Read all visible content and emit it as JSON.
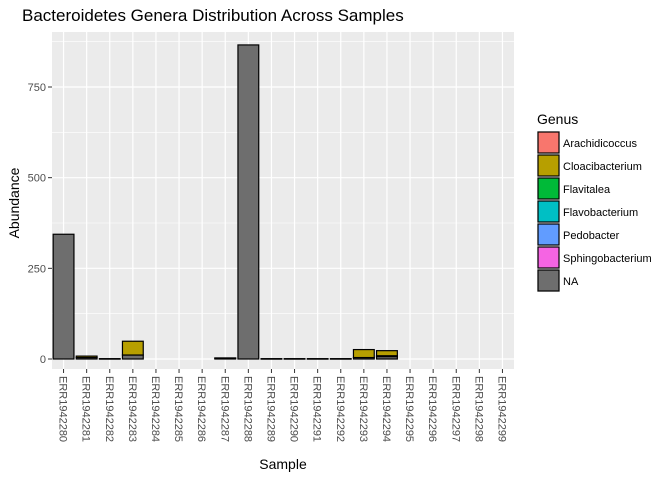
{
  "chart_data": {
    "type": "bar",
    "stacked": true,
    "title": "Bacteroidetes Genera Distribution Across Samples",
    "xlabel": "Sample",
    "ylabel": "Abundance",
    "ylim": [
      0,
      900
    ],
    "yticks": [
      0,
      250,
      500,
      750
    ],
    "ytick_labels": [
      "0",
      "250",
      "500",
      "750"
    ],
    "grid": true,
    "legend_position": "right",
    "legend_title": "Genus",
    "categories": [
      "ERR1942280",
      "ERR1942281",
      "ERR1942282",
      "ERR1942283",
      "ERR1942284",
      "ERR1942285",
      "ERR1942286",
      "ERR1942287",
      "ERR1942288",
      "ERR1942289",
      "ERR1942290",
      "ERR1942291",
      "ERR1942292",
      "ERR1942293",
      "ERR1942294",
      "ERR1942295",
      "ERR1942296",
      "ERR1942297",
      "ERR1942298",
      "ERR1942299"
    ],
    "series": [
      {
        "name": "Arachidicoccus",
        "color": "#F8766D",
        "values": [
          0,
          0,
          0,
          0,
          0,
          0,
          0,
          0,
          0,
          0,
          0,
          0,
          0,
          0,
          0,
          0,
          0,
          0,
          0,
          0
        ]
      },
      {
        "name": "Cloacibacterium",
        "color": "#B79F00",
        "values": [
          0,
          4,
          0,
          38,
          0,
          0,
          0,
          1,
          0,
          0,
          0,
          0,
          0,
          22,
          14,
          0,
          0,
          0,
          0,
          0
        ]
      },
      {
        "name": "Flavitalea",
        "color": "#00BA38",
        "values": [
          0,
          0,
          0,
          0,
          0,
          0,
          0,
          0,
          0,
          0,
          0,
          0,
          0,
          0,
          0,
          0,
          0,
          0,
          0,
          0
        ]
      },
      {
        "name": "Flavobacterium",
        "color": "#00BFC4",
        "values": [
          0,
          0,
          0,
          0,
          0,
          0,
          0,
          0,
          0,
          0,
          0,
          0,
          0,
          0,
          0,
          0,
          0,
          0,
          0,
          0
        ]
      },
      {
        "name": "Pedobacter",
        "color": "#619CFF",
        "values": [
          0,
          0,
          0,
          0,
          0,
          0,
          0,
          0,
          0,
          0,
          0,
          0,
          0,
          0,
          1,
          0,
          0,
          0,
          0,
          0
        ]
      },
      {
        "name": "Sphingobacterium",
        "color": "#F564E3",
        "values": [
          0,
          0,
          0,
          0,
          0,
          0,
          0,
          0,
          0,
          0,
          0,
          0,
          0,
          0,
          1,
          0,
          0,
          0,
          0,
          0
        ]
      },
      {
        "name": "NA",
        "color": "#6E6E6E",
        "values": [
          344,
          4,
          1,
          11,
          0,
          0,
          0,
          2,
          866,
          1,
          1,
          1,
          1,
          4,
          7,
          0,
          0,
          0,
          0,
          0
        ]
      }
    ]
  }
}
